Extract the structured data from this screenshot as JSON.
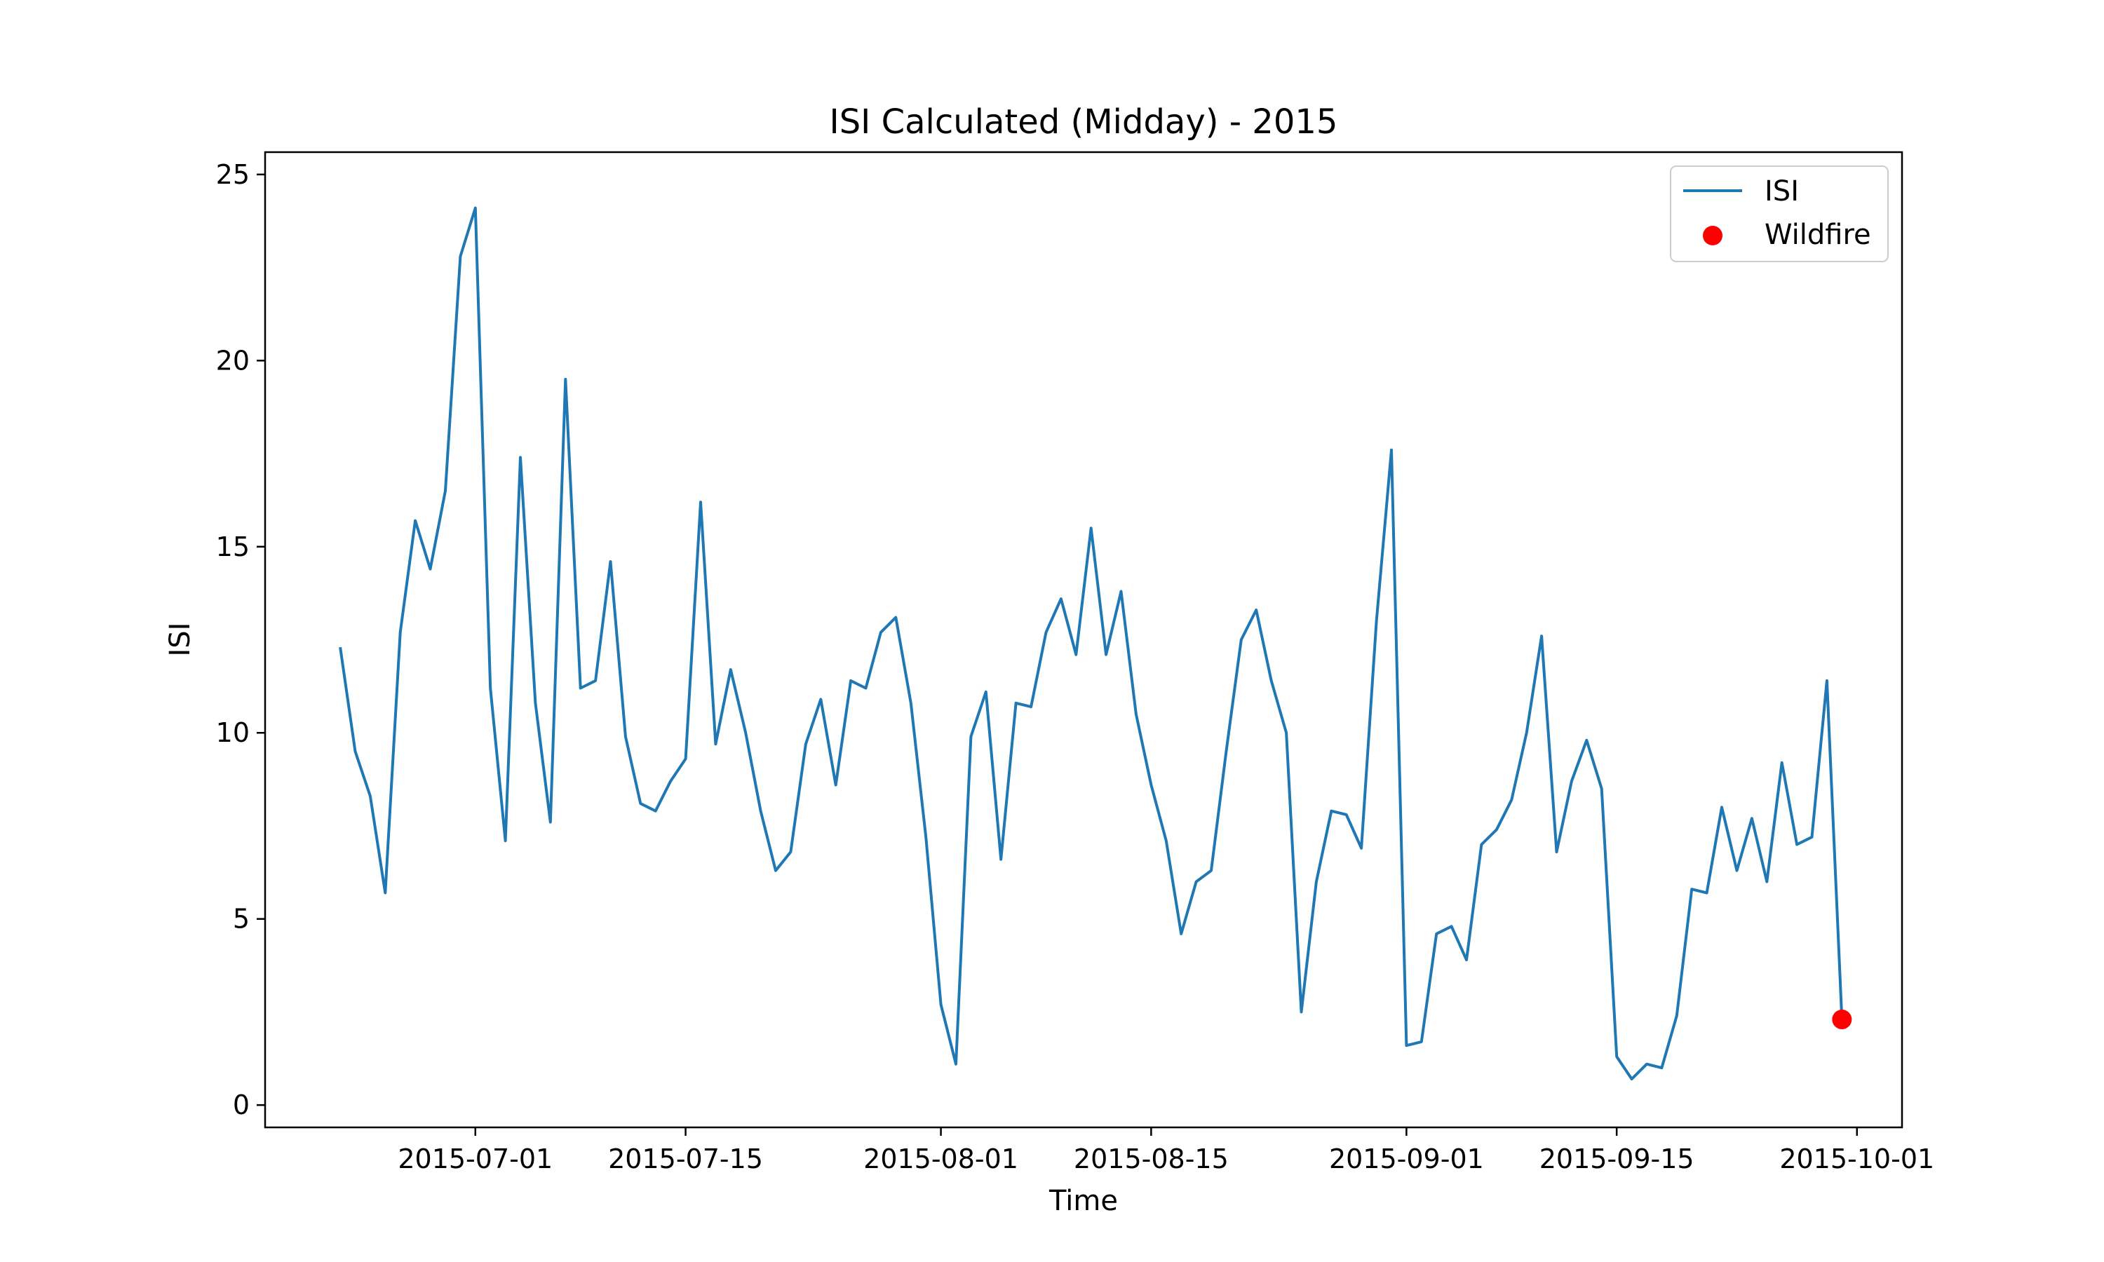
{
  "chart_data": {
    "type": "line",
    "title": "ISI Calculated (Midday) - 2015",
    "xlabel": "Time",
    "ylabel": "ISI",
    "xlim": [
      "2015-06-17",
      "2015-10-04"
    ],
    "ylim": [
      -0.6,
      25.6
    ],
    "x_ticks": [
      "2015-07-01",
      "2015-07-15",
      "2015-08-01",
      "2015-08-15",
      "2015-09-01",
      "2015-09-15",
      "2015-10-01"
    ],
    "y_ticks": [
      0,
      5,
      10,
      15,
      20,
      25
    ],
    "grid": false,
    "legend": {
      "position": "top-right",
      "entries": [
        "ISI",
        "Wildfire"
      ]
    },
    "series": [
      {
        "name": "ISI",
        "mark": "line",
        "color": "#1f77b4",
        "x_start": "2015-06-22",
        "x_step_days": 1,
        "values": [
          12.3,
          9.5,
          8.3,
          5.7,
          12.7,
          15.7,
          14.4,
          16.5,
          22.8,
          24.1,
          11.2,
          7.1,
          17.4,
          10.8,
          7.6,
          19.5,
          11.2,
          11.4,
          14.6,
          9.9,
          8.1,
          7.9,
          8.7,
          9.3,
          16.2,
          9.7,
          11.7,
          10.0,
          7.9,
          6.3,
          6.8,
          9.7,
          10.9,
          8.6,
          11.4,
          11.2,
          12.7,
          13.1,
          10.8,
          7.2,
          2.7,
          1.1,
          9.9,
          11.1,
          6.6,
          10.8,
          10.7,
          12.7,
          13.6,
          12.1,
          15.5,
          12.1,
          13.8,
          10.5,
          8.6,
          7.1,
          4.6,
          6.0,
          6.3,
          9.5,
          12.5,
          13.3,
          11.4,
          10.0,
          2.5,
          6.0,
          7.9,
          7.8,
          6.9,
          13.0,
          17.6,
          1.6,
          1.7,
          4.6,
          4.8,
          3.9,
          7.0,
          7.4,
          8.2,
          10.0,
          12.6,
          6.8,
          8.7,
          9.8,
          8.5,
          1.3,
          0.7,
          1.1,
          1.0,
          2.4,
          5.8,
          5.7,
          8.0,
          6.3,
          7.7,
          6.0,
          9.2,
          7.0,
          7.2,
          11.4,
          2.3
        ]
      },
      {
        "name": "Wildfire",
        "mark": "point",
        "color": "#ff0000",
        "points": [
          {
            "x": "2015-09-30",
            "y": 2.3
          }
        ]
      }
    ]
  }
}
